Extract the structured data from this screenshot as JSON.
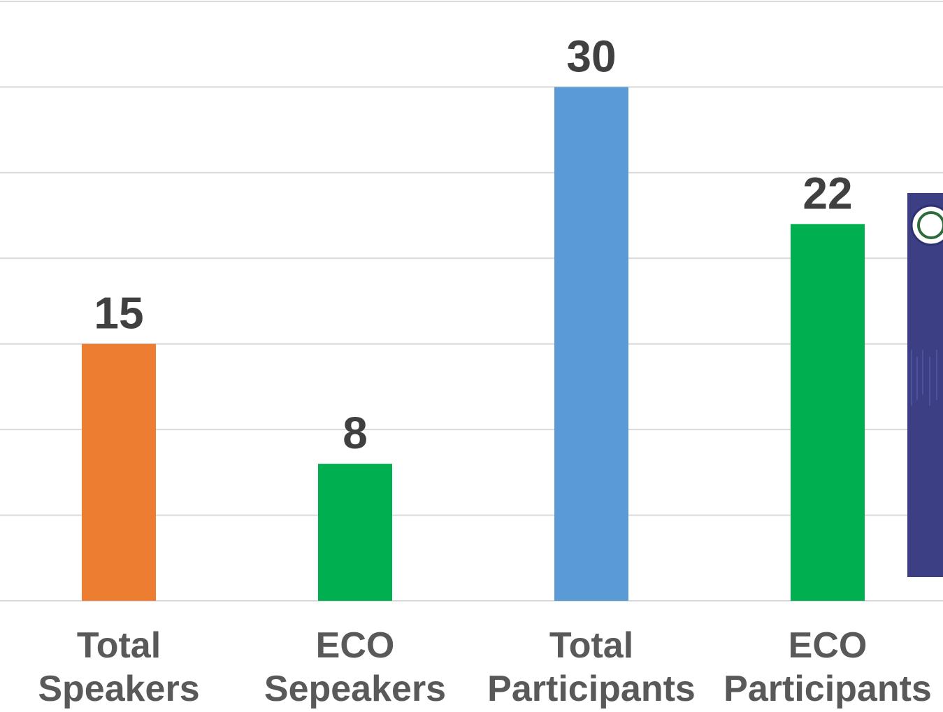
{
  "chart_data": {
    "type": "bar",
    "categories": [
      [
        "Total",
        "Speakers"
      ],
      [
        "ECO",
        "Sepeakers"
      ],
      [
        "Total",
        "Participants"
      ],
      [
        "ECO",
        "Participants"
      ]
    ],
    "values": [
      15,
      8,
      30,
      22
    ],
    "bar_colors": [
      "#ED7D31",
      "#00B050",
      "#5B9BD5",
      "#00B050"
    ],
    "ylim": [
      0,
      35
    ],
    "grid": true,
    "legend": "none",
    "data_labels": true
  },
  "overlay_panel": {
    "kind": "emblem-panel",
    "color": "#3C3F84"
  }
}
